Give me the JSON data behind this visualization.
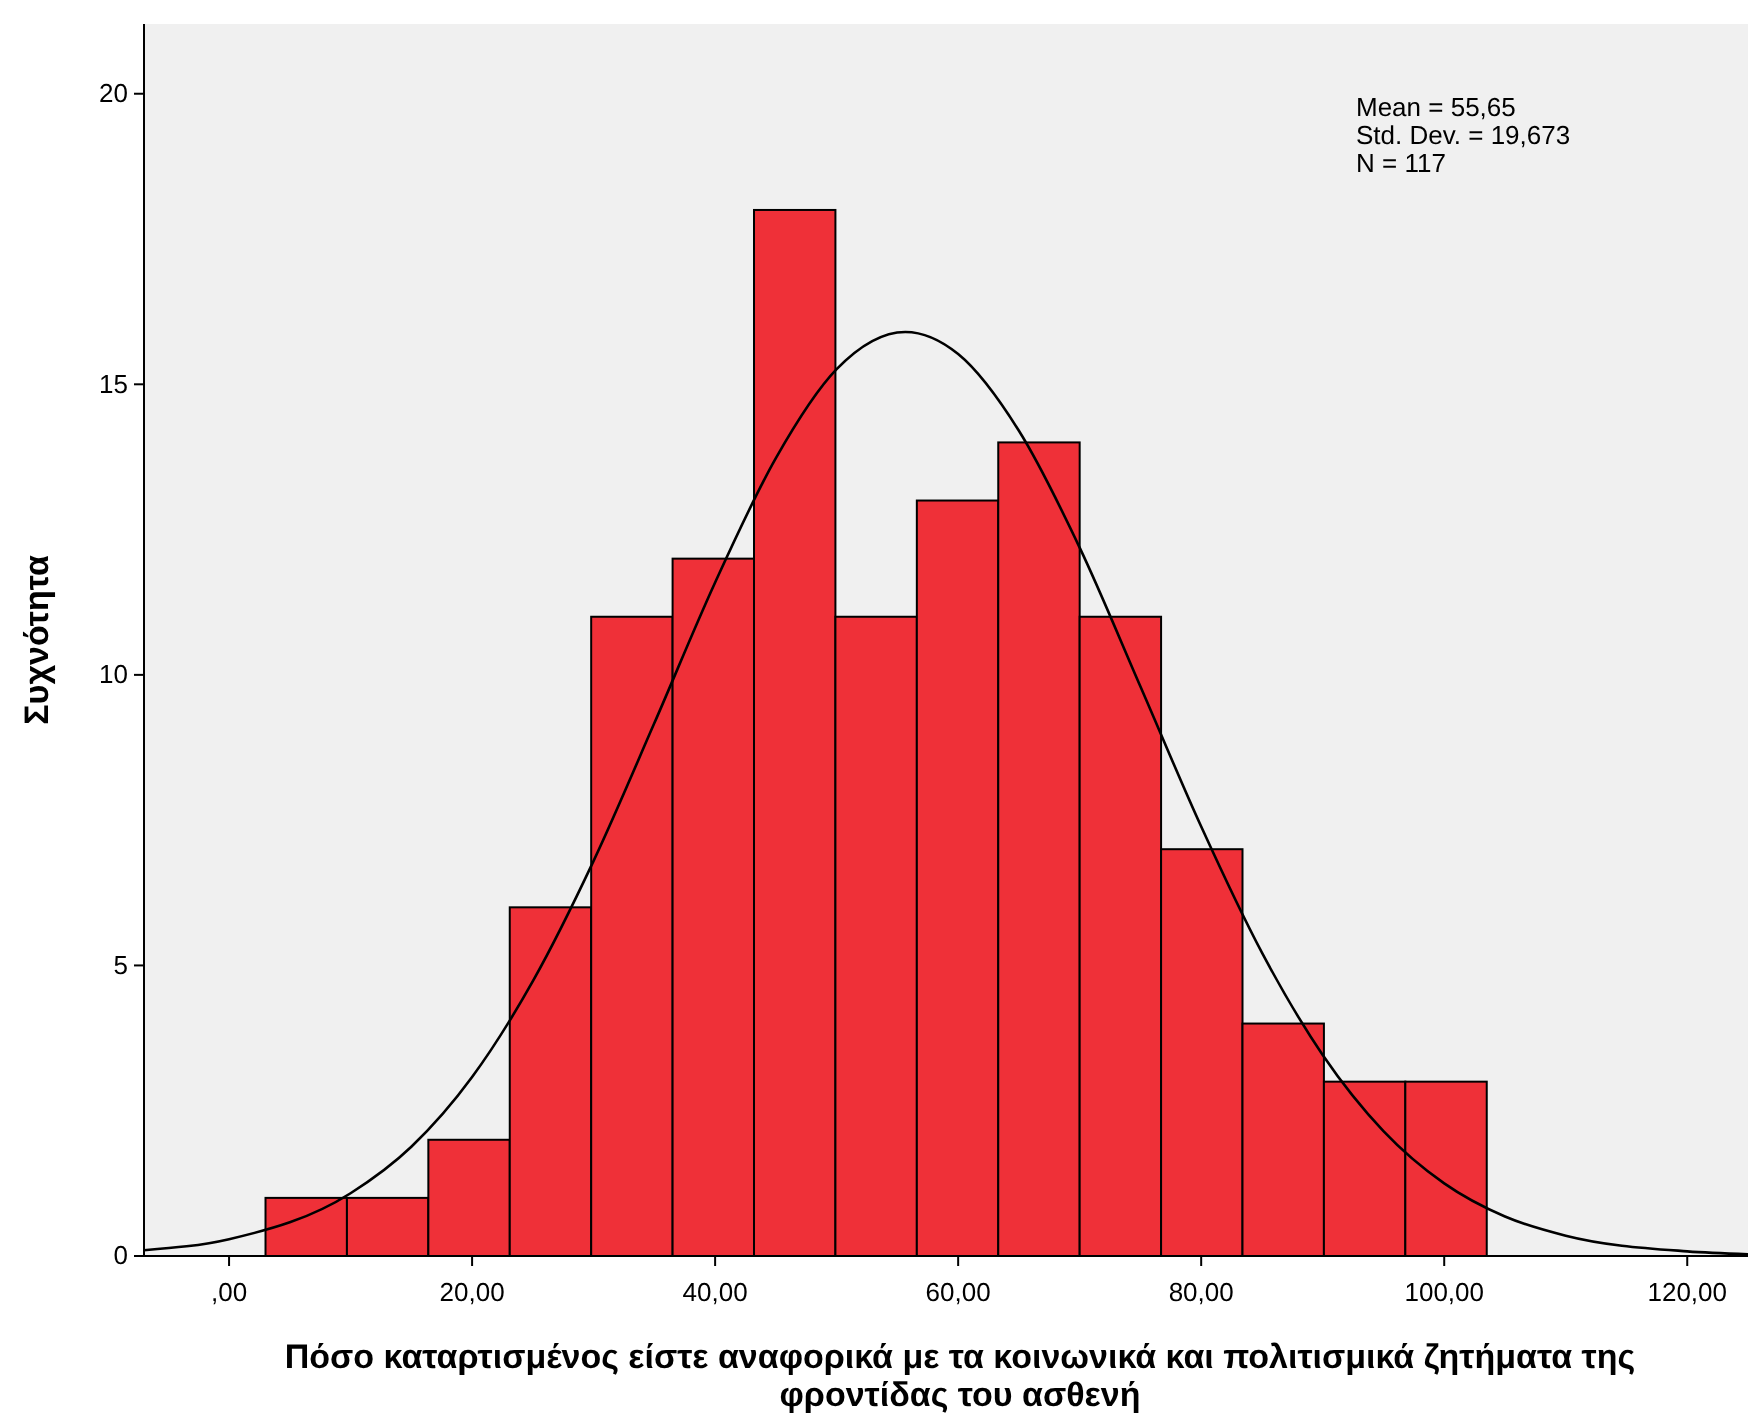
{
  "chart_data": {
    "type": "histogram",
    "xlabel": "Πόσο καταρτισμένος είστε αναφορικά με τα κοινωνικά και πολιτισμικά ζητήματα της φροντίδας του ασθενή",
    "ylabel": "Συχνότητα",
    "bins": [
      3.0,
      9.7,
      16.4,
      23.1,
      29.8,
      36.5,
      43.2,
      49.9,
      56.6,
      63.3,
      70.0,
      76.7,
      83.4,
      90.1,
      96.8,
      103.5
    ],
    "values": [
      1,
      1,
      2,
      6,
      11,
      12,
      18,
      11,
      13,
      14,
      11,
      7,
      4,
      3,
      3
    ],
    "color": "#ef3038",
    "series": [
      {
        "type": "line",
        "color": "#000000",
        "x": [
          -7,
          0,
          10,
          15,
          20,
          25,
          30,
          35,
          40,
          45,
          50,
          55.65,
          60,
          65,
          70,
          75,
          80,
          85,
          90,
          95,
          100,
          105,
          110,
          120,
          125
        ],
        "values": [
          0.1,
          0.29,
          1.08,
          1.88,
          3.08,
          4.73,
          6.8,
          9.17,
          11.59,
          13.73,
          15.26,
          15.9,
          15.52,
          14.2,
          12.19,
          9.8,
          7.39,
          5.22,
          3.46,
          2.15,
          1.25,
          0.68,
          0.35,
          0.08,
          0.03
        ]
      }
    ],
    "xlim": [
      -7,
      125
    ],
    "xticks": [
      {
        "value": 0,
        "label": ",00"
      },
      {
        "value": 20,
        "label": "20,00"
      },
      {
        "value": 40,
        "label": "40,00"
      },
      {
        "value": 60,
        "label": "60,00"
      },
      {
        "value": 80,
        "label": "80,00"
      },
      {
        "value": 100,
        "label": "100,00"
      },
      {
        "value": 120,
        "label": "120,00"
      }
    ],
    "ylim": [
      0,
      21.2
    ],
    "yticks": [
      0,
      5,
      10,
      15,
      20
    ],
    "grid": false,
    "annotations": [
      "Mean = 55,65",
      "Std. Dev. = 19,673",
      "N = 117"
    ]
  }
}
